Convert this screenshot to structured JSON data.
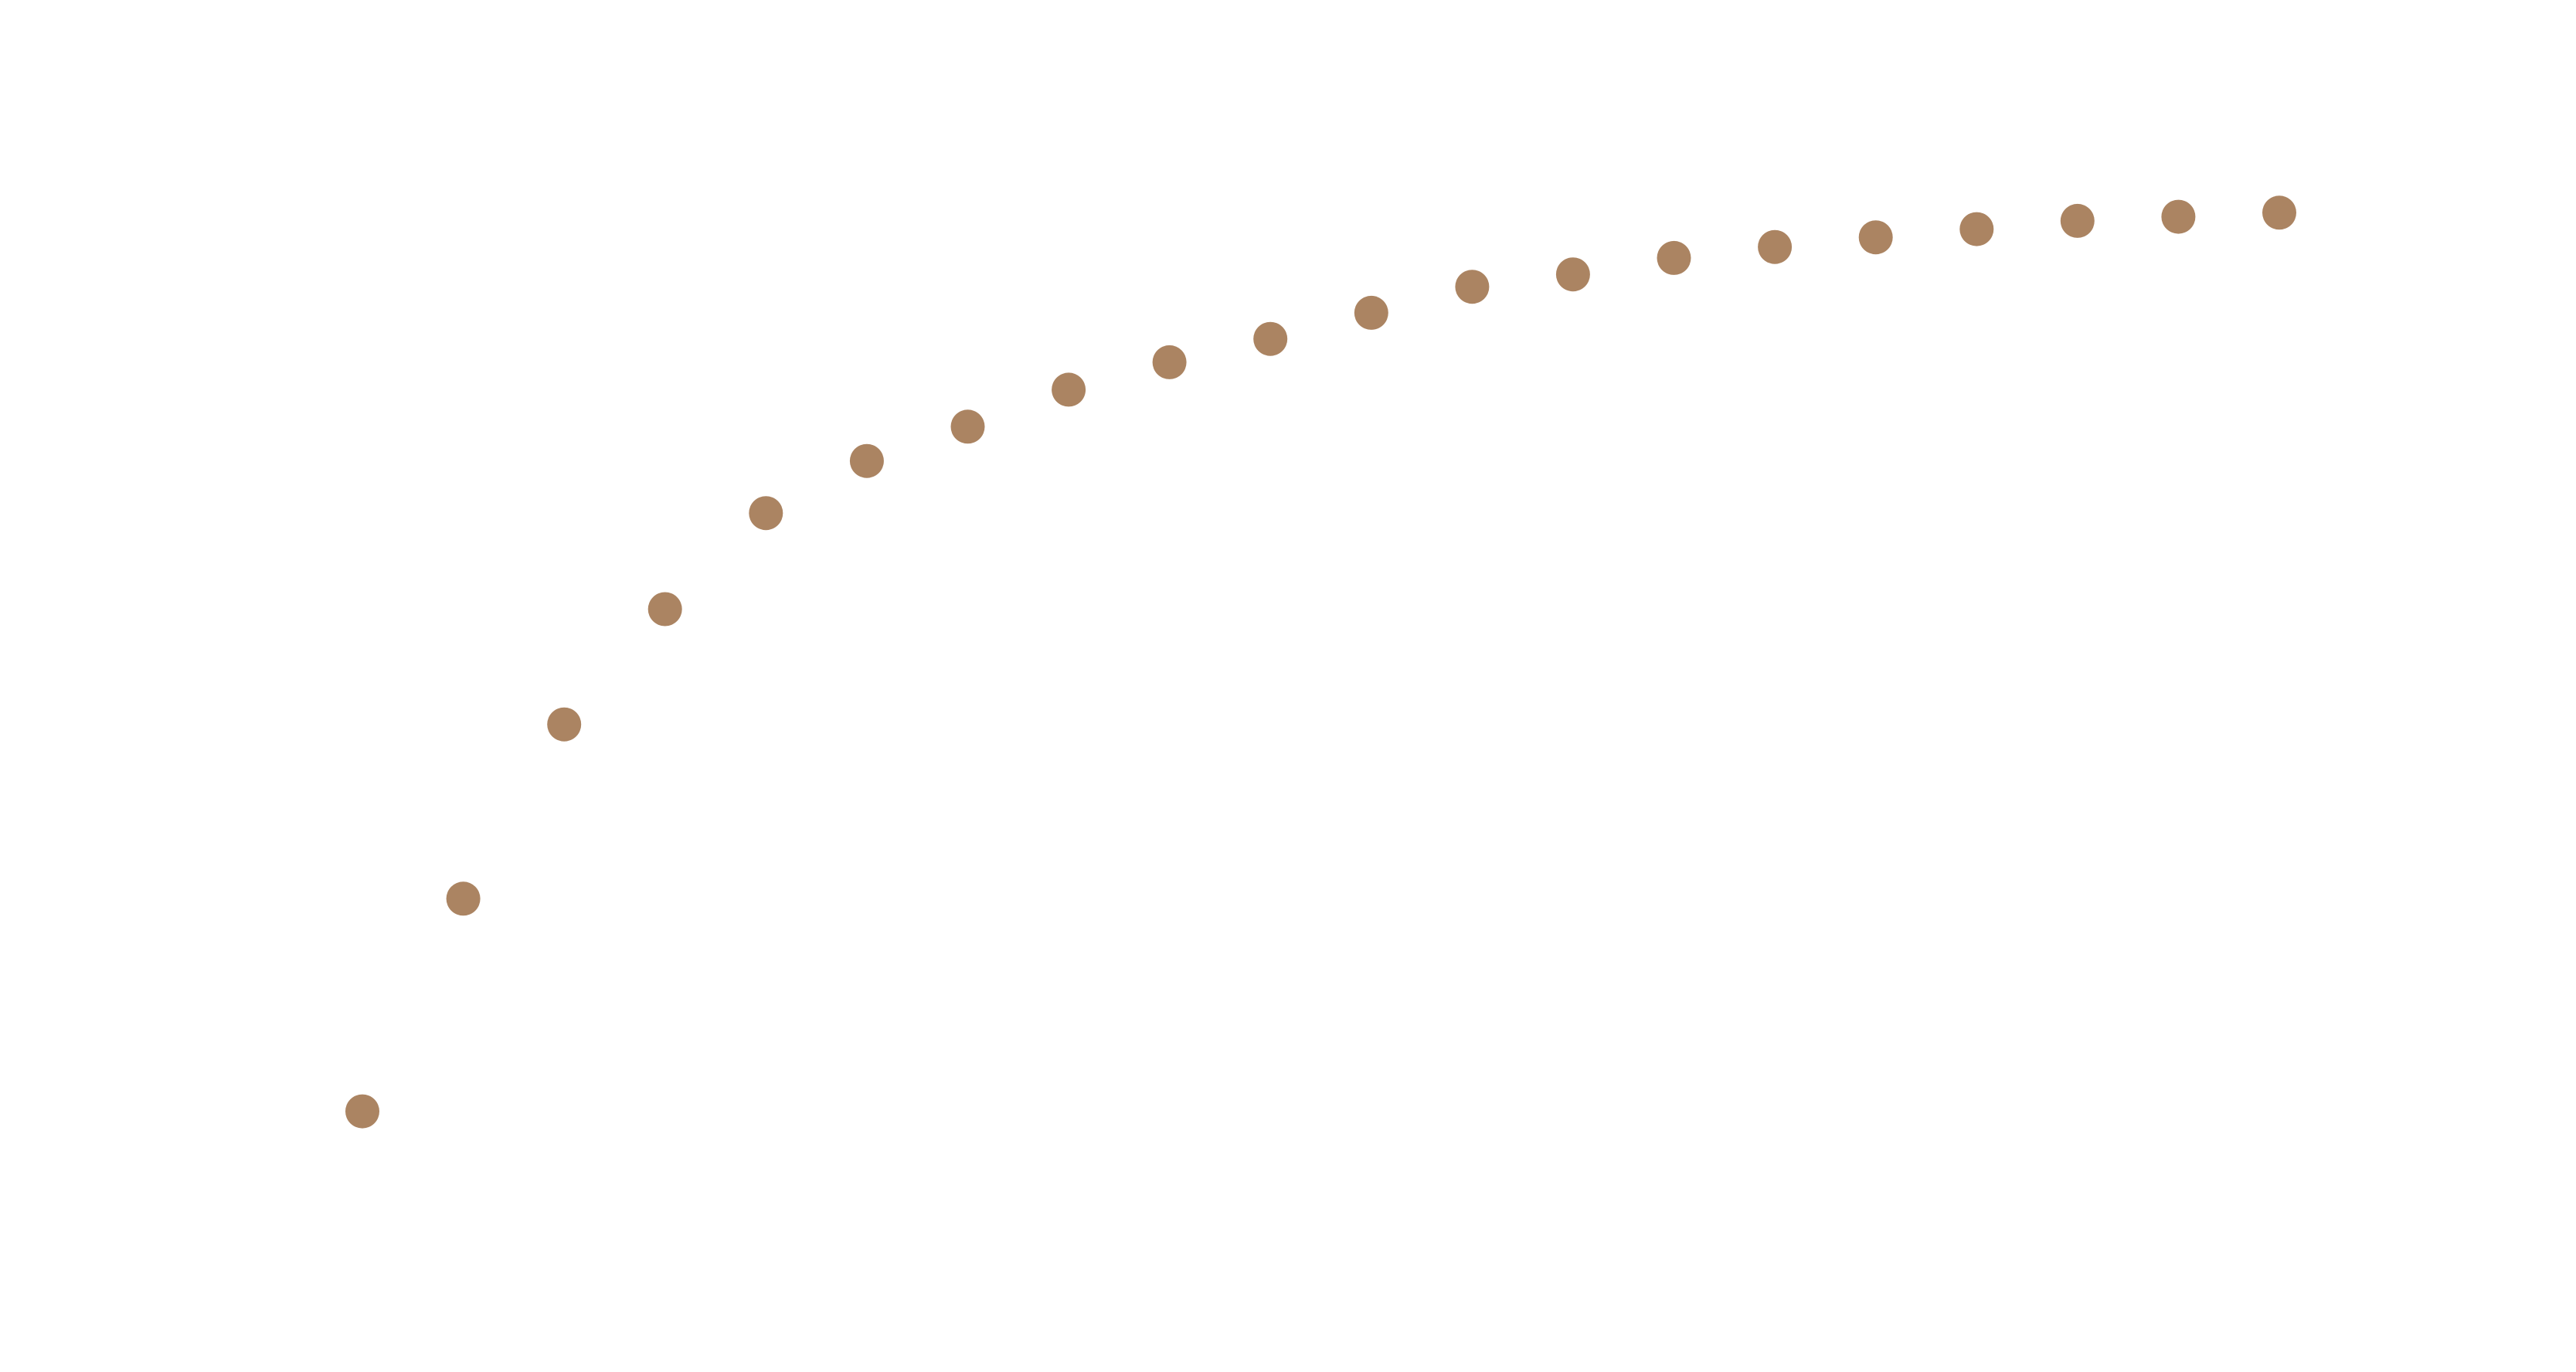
{
  "chart_data": {
    "type": "scatter",
    "title": "",
    "xlabel": "",
    "ylabel": "",
    "grid": false,
    "legend": "none",
    "color": "#ab8462",
    "xlim": [
      0,
      20
    ],
    "ylim": [
      0,
      1
    ],
    "series": [
      {
        "x": [
          1,
          2,
          3,
          4,
          5,
          6,
          7,
          8,
          9,
          10,
          11,
          12,
          13,
          14,
          15,
          16,
          17,
          18,
          19,
          20
        ],
        "y": [
          0.19,
          0.345,
          0.472,
          0.556,
          0.626,
          0.664,
          0.689,
          0.716,
          0.736,
          0.753,
          0.772,
          0.791,
          0.8,
          0.812,
          0.82,
          0.827,
          0.833,
          0.839,
          0.842,
          0.845
        ]
      }
    ]
  }
}
